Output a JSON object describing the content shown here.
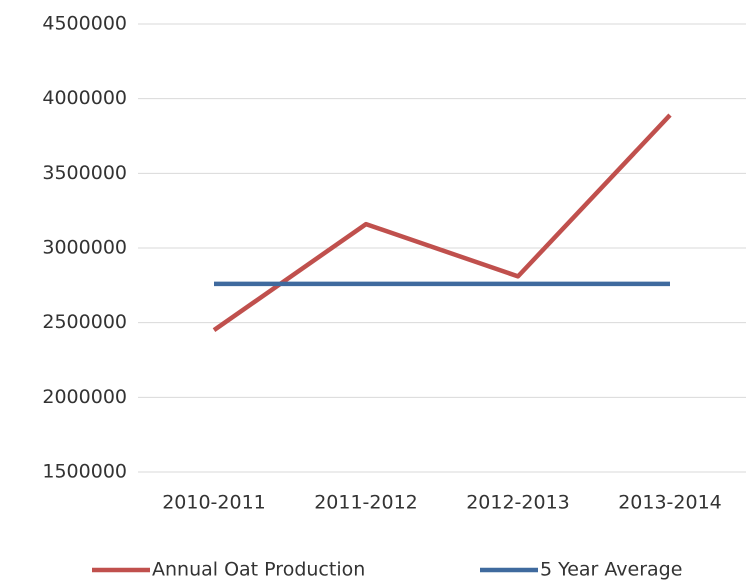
{
  "chart_data": {
    "type": "line",
    "categories": [
      "2010-2011",
      "2011-2012",
      "2012-2013",
      "2013-2014"
    ],
    "series": [
      {
        "name": "Annual Oat Production",
        "color": "#c0504d",
        "values": [
          2450000,
          3160000,
          2810000,
          3890000
        ]
      },
      {
        "name": "5 Year Average",
        "color": "#3f6a9e",
        "values": [
          2760000,
          2760000,
          2760000,
          2760000
        ]
      }
    ],
    "ylim": [
      1500000,
      4500000
    ],
    "yticks": [
      1500000,
      2000000,
      2500000,
      3000000,
      3500000,
      4000000,
      4500000
    ],
    "grid": true,
    "legend": "bottom"
  }
}
